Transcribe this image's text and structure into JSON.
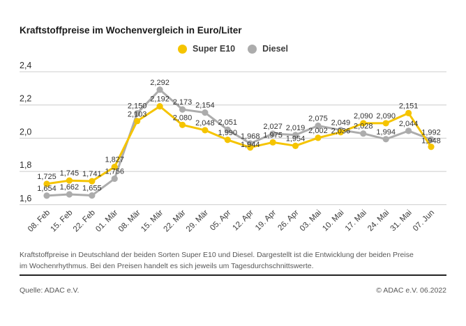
{
  "header": {
    "title": "Kraftstoffpreise im Wochenvergleich in Euro/Liter"
  },
  "chart_data": {
    "type": "line",
    "title": "Kraftstoffpreise im Wochenvergleich in Euro/Liter",
    "x": [
      "08. Feb",
      "15. Feb",
      "22. Feb",
      "01. Mär",
      "08. Mär",
      "15. Mär",
      "22. Mär",
      "29. Mär",
      "05. Apr",
      "12. Apr",
      "19. Apr",
      "26. Apr",
      "03. Mai",
      "10. Mai",
      "17. Mai",
      "24. Mai",
      "31. Mai",
      "07. Jun"
    ],
    "series": [
      {
        "name": "Super E10",
        "color": "#f5c400",
        "values": [
          1.725,
          1.745,
          1.741,
          1.827,
          2.103,
          2.192,
          2.08,
          2.048,
          1.99,
          1.944,
          1.975,
          1.954,
          2.002,
          2.036,
          2.09,
          2.09,
          2.151,
          1.948
        ]
      },
      {
        "name": "Diesel",
        "color": "#acacac",
        "values": [
          1.654,
          1.662,
          1.655,
          1.756,
          2.15,
          2.292,
          2.173,
          2.154,
          2.051,
          1.968,
          2.027,
          2.019,
          2.075,
          2.049,
          2.028,
          1.994,
          2.044,
          1.992
        ]
      }
    ],
    "ylim": [
      1.6,
      2.4
    ],
    "yticks": [
      2.4,
      2.2,
      2.0,
      1.8,
      1.6
    ],
    "ylabel": "",
    "xlabel": "",
    "grid": true,
    "legend_position": "top-center",
    "value_labels": true,
    "decimal_separator": ",",
    "colors": {
      "grid": "#cccccc",
      "axis_text": "#2e2e2e",
      "value_label_text": "#333333"
    }
  },
  "footnote": {
    "text": "Kraftstoffpreise in Deutschland der beiden Sorten Super E10 und Diesel. Dargestellt ist die Entwicklung der beiden Preise im Wochenrhythmus. Bei den Preisen handelt es sich jeweils um Tagesdurchschnittswerte."
  },
  "footer": {
    "source": "Quelle: ADAC e.V.",
    "copyright": "© ADAC e.V. 06.2022"
  }
}
